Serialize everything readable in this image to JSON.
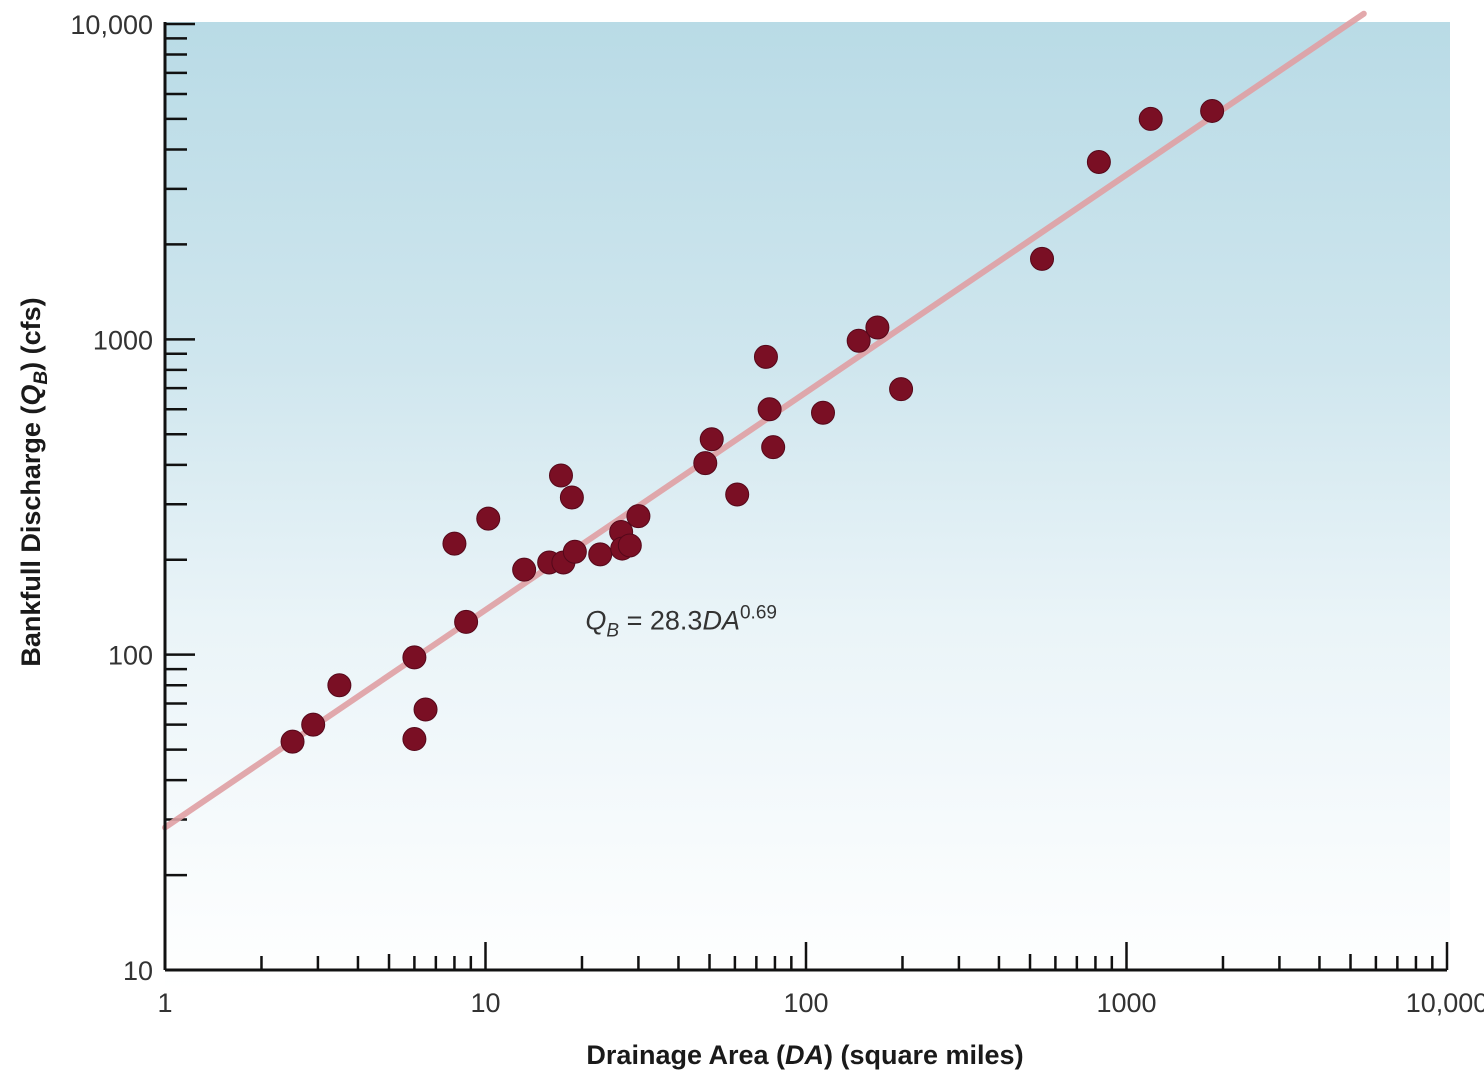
{
  "chart_data": {
    "type": "scatter",
    "x_scale": "log",
    "y_scale": "log",
    "xlim": [
      1,
      10000
    ],
    "ylim": [
      10,
      10000
    ],
    "xlabel": {
      "prefix": "Drainage Area (",
      "italic": "DA",
      "suffix": ") (square miles)"
    },
    "ylabel": {
      "prefix": "Bankfull Discharge (",
      "italic": "Q",
      "subscript": "B",
      "suffix": ") (cfs)"
    },
    "x_ticks": [
      {
        "value": 1,
        "label": "1"
      },
      {
        "value": 10,
        "label": "10"
      },
      {
        "value": 100,
        "label": "100"
      },
      {
        "value": 1000,
        "label": "1000"
      },
      {
        "value": 10000,
        "label": "10,000"
      }
    ],
    "y_ticks": [
      {
        "value": 10,
        "label": "10"
      },
      {
        "value": 100,
        "label": "100"
      },
      {
        "value": 1000,
        "label": "1000"
      },
      {
        "value": 10000,
        "label": "10,000"
      }
    ],
    "points": [
      {
        "x": 2.5,
        "y": 53
      },
      {
        "x": 2.9,
        "y": 60
      },
      {
        "x": 3.5,
        "y": 80
      },
      {
        "x": 6.0,
        "y": 98
      },
      {
        "x": 6.0,
        "y": 54
      },
      {
        "x": 6.5,
        "y": 67
      },
      {
        "x": 8.0,
        "y": 225
      },
      {
        "x": 8.7,
        "y": 127
      },
      {
        "x": 10.2,
        "y": 270
      },
      {
        "x": 13.2,
        "y": 186
      },
      {
        "x": 15.8,
        "y": 196
      },
      {
        "x": 17.2,
        "y": 370
      },
      {
        "x": 17.5,
        "y": 196
      },
      {
        "x": 18.6,
        "y": 315
      },
      {
        "x": 19.0,
        "y": 212
      },
      {
        "x": 22.8,
        "y": 208
      },
      {
        "x": 26.5,
        "y": 245
      },
      {
        "x": 26.7,
        "y": 217
      },
      {
        "x": 28.2,
        "y": 222
      },
      {
        "x": 30.0,
        "y": 275
      },
      {
        "x": 48.5,
        "y": 405
      },
      {
        "x": 50.8,
        "y": 482
      },
      {
        "x": 61.0,
        "y": 322
      },
      {
        "x": 75.0,
        "y": 880
      },
      {
        "x": 77.0,
        "y": 600
      },
      {
        "x": 79.0,
        "y": 455
      },
      {
        "x": 113.0,
        "y": 585
      },
      {
        "x": 146.0,
        "y": 990
      },
      {
        "x": 167.0,
        "y": 1090
      },
      {
        "x": 198.0,
        "y": 695
      },
      {
        "x": 545.0,
        "y": 1800
      },
      {
        "x": 820.0,
        "y": 3650
      },
      {
        "x": 1190.0,
        "y": 5000
      },
      {
        "x": 1850.0,
        "y": 5300
      }
    ],
    "fit": {
      "coefficient": 28.3,
      "exponent": 0.69,
      "x_range": [
        1,
        5500
      ],
      "label": {
        "var": "Q",
        "var_sub": "B",
        "equals": " = ",
        "coef": "28.3",
        "xvar": "DA",
        "exp": "0.69"
      },
      "label_at": {
        "x": 20.5,
        "y": 120
      }
    },
    "colors": {
      "point": "#7a0f24",
      "point_stroke": "#55081a",
      "fit_line": "#e0a0a4",
      "axis": "#111111",
      "page": "#d9d9f2",
      "plot_top": "#b9dbe6",
      "plot_bottom": "#ffffff"
    }
  }
}
